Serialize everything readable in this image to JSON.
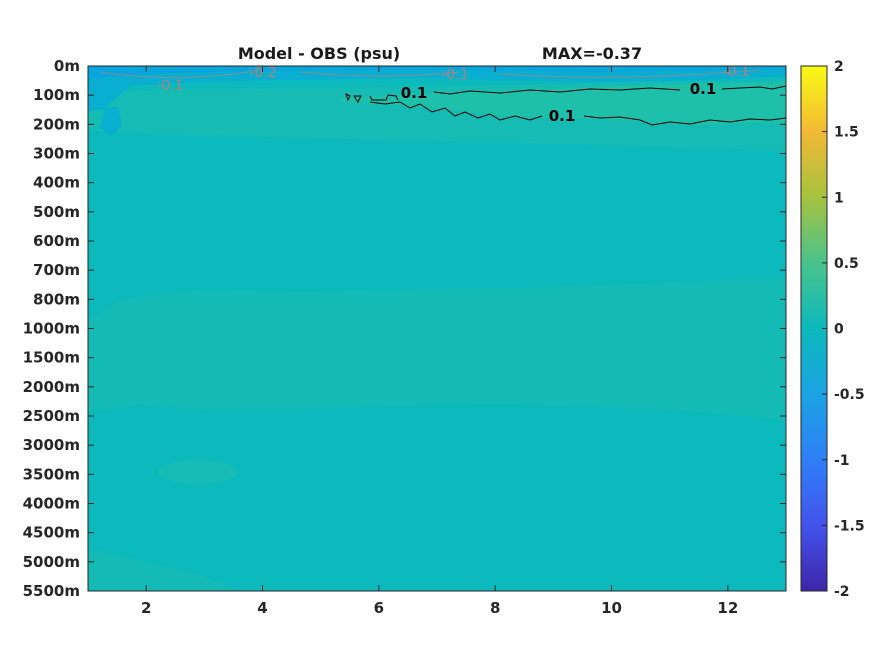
{
  "chart_data": {
    "type": "heatmap",
    "title": "Model - OBS (psu)",
    "subtitle": "MAX=-0.37",
    "x_ticks": [
      2,
      4,
      6,
      8,
      10,
      12
    ],
    "xlim": [
      1,
      13
    ],
    "y_tick_labels": [
      "0m",
      "100m",
      "200m",
      "300m",
      "400m",
      "500m",
      "600m",
      "700m",
      "800m",
      "1000m",
      "1500m",
      "2000m",
      "2500m",
      "3000m",
      "3500m",
      "4000m",
      "4500m",
      "5000m",
      "5500m"
    ],
    "colorbar": {
      "range": [
        -2,
        2
      ],
      "ticks": [
        2,
        1.5,
        1,
        0.5,
        0,
        -0.5,
        -1,
        -1.5,
        -2
      ],
      "tick_labels": [
        "2",
        "1.5",
        "1",
        "0.5",
        "0",
        "-0.5",
        "-1",
        "-1.5",
        "-2"
      ],
      "colormap": "parula"
    },
    "contour_labels": [
      {
        "text": "0.1",
        "month": 6.6,
        "depth": "100m"
      },
      {
        "text": "0.1",
        "month": 11.6,
        "depth": "100m"
      },
      {
        "text": "0.1",
        "month": 9.1,
        "depth": "200m"
      },
      {
        "text": "-0.1",
        "month": 2.4,
        "depth": "0m"
      },
      {
        "text": "-0.2",
        "month": 4.0,
        "depth": "0m"
      },
      {
        "text": "-0.1",
        "month": 7.4,
        "depth": "0m"
      },
      {
        "text": "-0.1",
        "month": 12.1,
        "depth": "0m"
      }
    ],
    "background_value_range": [
      -0.3,
      0.2
    ],
    "colors": {
      "field_base": "#0cb9bd",
      "field_slightly_positive": "#16bcb3",
      "field_positive": "#1fc0a9",
      "field_negative": "#0aa8d8",
      "contour_positive": "#000000",
      "contour_negative": "#d07a6a"
    }
  }
}
